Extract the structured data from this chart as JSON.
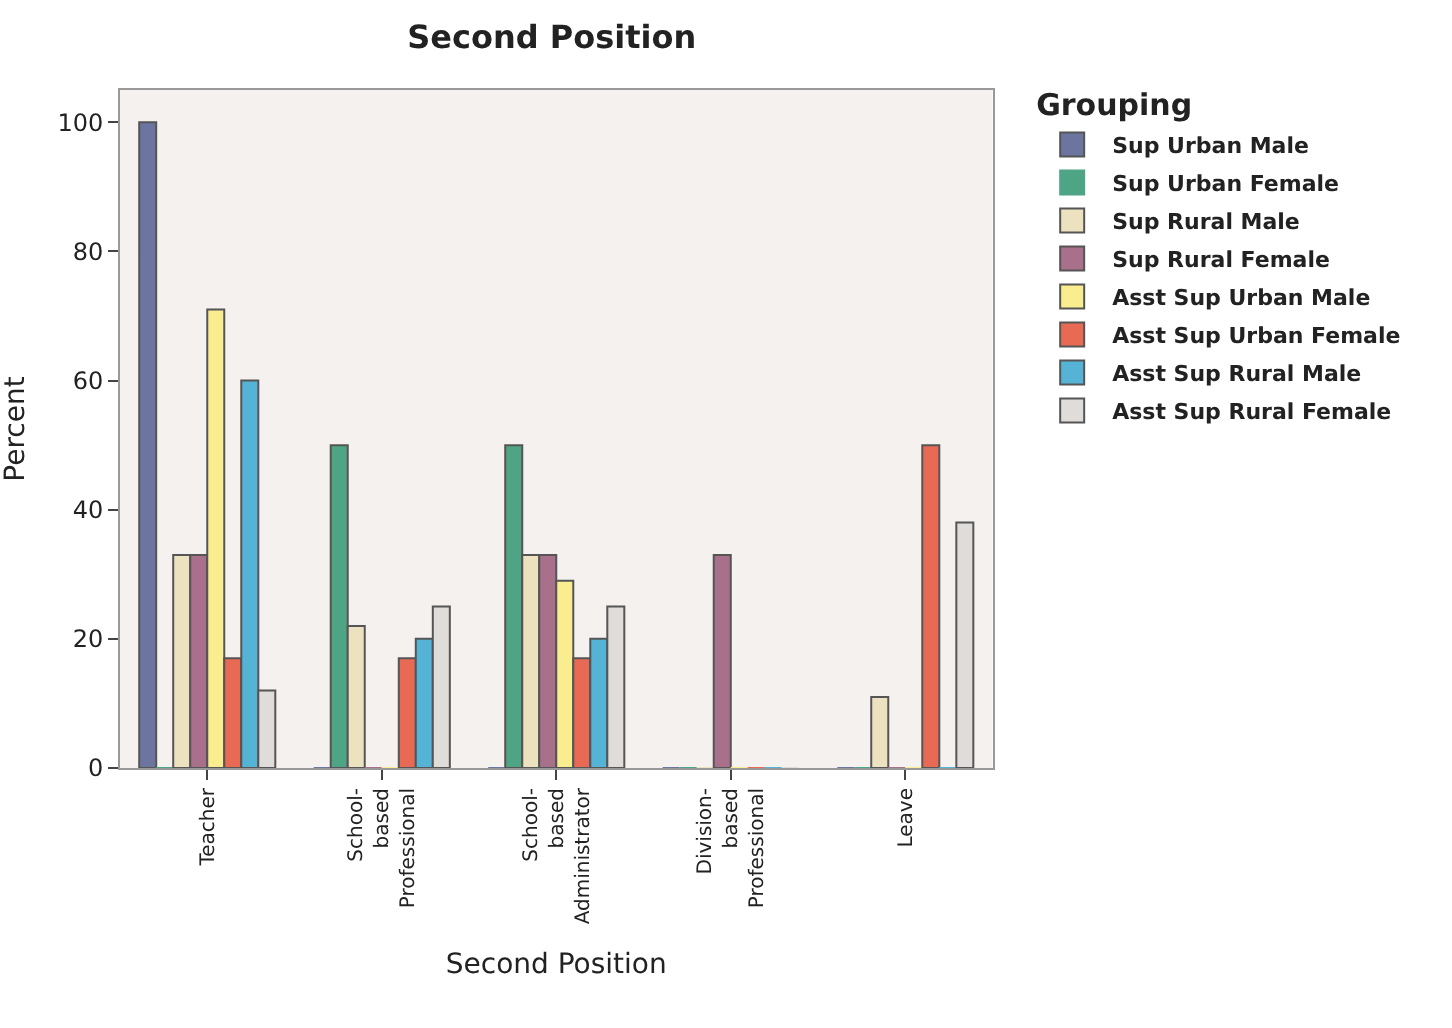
{
  "chart_data": {
    "type": "bar",
    "title": "Second Position",
    "xlabel": "Second Position",
    "ylabel": "Percent",
    "legend_title": "Grouping",
    "legend": "top right",
    "grid": false,
    "categories": [
      "Teacher",
      "School-\nbased\nProfessional",
      "School-\nbased\nAdministrator",
      "Division-\nbased\nProfessional",
      "Leave"
    ],
    "ylim": [
      0,
      105
    ],
    "yticks": [
      0,
      20,
      40,
      60,
      80,
      100
    ],
    "series": [
      {
        "name": "Sup Urban Male",
        "color": "#6b75a0",
        "values": [
          100,
          0,
          0,
          0,
          0
        ]
      },
      {
        "name": "Sup Urban Female",
        "color": "#4ea585",
        "values": [
          0,
          50,
          50,
          0,
          0
        ]
      },
      {
        "name": "Sup Rural Male",
        "color": "#ede2c0",
        "values": [
          33,
          22,
          33,
          0,
          11
        ]
      },
      {
        "name": "Sup Rural Female",
        "color": "#a8708a",
        "values": [
          33,
          0,
          33,
          33,
          0
        ]
      },
      {
        "name": "Asst Sup Urban Male",
        "color": "#f9ed8f",
        "values": [
          71,
          0,
          29,
          0,
          0
        ]
      },
      {
        "name": "Asst Sup Urban Female",
        "color": "#e86a54",
        "values": [
          17,
          17,
          17,
          0,
          50
        ]
      },
      {
        "name": "Asst Sup Rural Male",
        "color": "#55b4d6",
        "values": [
          60,
          20,
          20,
          0,
          0
        ]
      },
      {
        "name": "Asst Sup Rural Female",
        "color": "#dfdcd9",
        "values": [
          12,
          25,
          25,
          0,
          38
        ]
      }
    ]
  }
}
